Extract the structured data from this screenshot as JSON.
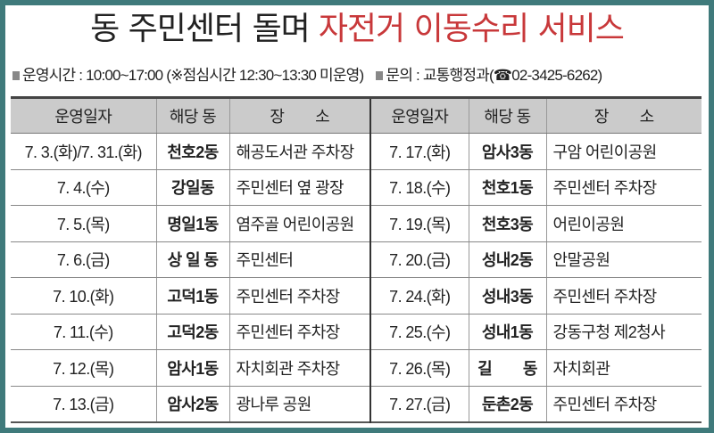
{
  "title": {
    "black": "동 주민센터 돌며",
    "red": "자전거 이동수리 서비스"
  },
  "info": {
    "hours": "운영시간 : 10:00~17:00 (※점심시간 12:30~13:30 미운영)",
    "contact": "문의 : 교통행정과(☎02-3425-6262)"
  },
  "colors": {
    "border": "#3f7a7b",
    "title_red": "#c8383a",
    "header_bg": "#cbcbcb"
  },
  "table": {
    "headers": [
      "운영일자",
      "해당 동",
      "장　　소",
      "운영일자",
      "해당 동",
      "장　　소"
    ],
    "rows": [
      [
        "7. 3.(화)/7. 31.(화)",
        "천호2동",
        "해공도서관 주차장",
        "7. 17.(화)",
        "암사3동",
        "구암 어린이공원"
      ],
      [
        "7.  4.(수)",
        "강일동",
        "주민센터 옆 광장",
        "7. 18.(수)",
        "천호1동",
        "주민센터 주차장"
      ],
      [
        "7.  5.(목)",
        "명일1동",
        "염주골 어린이공원",
        "7. 19.(목)",
        "천호3동",
        "어린이공원"
      ],
      [
        "7.  6.(금)",
        "상 일 동",
        "주민센터",
        "7. 20.(금)",
        "성내2동",
        "안말공원"
      ],
      [
        "7. 10.(화)",
        "고덕1동",
        "주민센터 주차장",
        "7. 24.(화)",
        "성내3동",
        "주민센터 주차장"
      ],
      [
        "7. 11.(수)",
        "고덕2동",
        "주민센터 주차장",
        "7. 25.(수)",
        "성내1동",
        "강동구청 제2청사"
      ],
      [
        "7. 12.(목)",
        "암사1동",
        "자치회관 주차장",
        "7. 26.(목)",
        "길　　동",
        "자치회관"
      ],
      [
        "7. 13.(금)",
        "암사2동",
        "광나루 공원",
        "7. 27.(금)",
        "둔촌2동",
        "주민센터 주차장"
      ]
    ]
  }
}
